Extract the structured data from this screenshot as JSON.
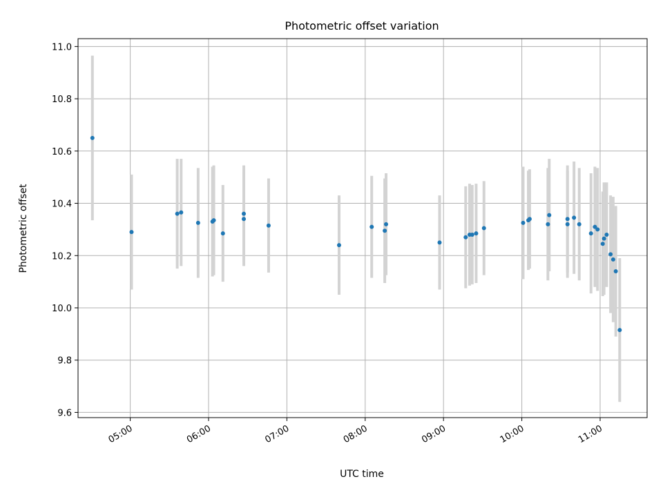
{
  "chart_data": {
    "type": "scatter",
    "title": "Photometric offset variation",
    "xlabel": "UTC time",
    "ylabel": "Photometric offset",
    "x_tick_labels": [
      "05:00",
      "06:00",
      "07:00",
      "08:00",
      "09:00",
      "10:00",
      "11:00"
    ],
    "y_ticks": [
      9.6,
      9.8,
      10.0,
      10.2,
      10.4,
      10.6,
      10.8,
      11.0
    ],
    "xlim": [
      "04:20",
      "11:36"
    ],
    "ylim": [
      9.58,
      11.03
    ],
    "grid": true,
    "colors": {
      "points": "#1f77b4",
      "error_bars": "#d3d3d3",
      "grid": "#b0b0b0"
    },
    "points": [
      {
        "x": "04:31",
        "y": 10.65,
        "err": 0.315
      },
      {
        "x": "05:01",
        "y": 10.29,
        "err": 0.22
      },
      {
        "x": "05:36",
        "y": 10.36,
        "err": 0.21
      },
      {
        "x": "05:39",
        "y": 10.365,
        "err": 0.205
      },
      {
        "x": "05:52",
        "y": 10.325,
        "err": 0.21
      },
      {
        "x": "06:03",
        "y": 10.33,
        "err": 0.21
      },
      {
        "x": "06:04",
        "y": 10.335,
        "err": 0.21
      },
      {
        "x": "06:11",
        "y": 10.285,
        "err": 0.185
      },
      {
        "x": "06:27",
        "y": 10.34,
        "err": 0.18
      },
      {
        "x": "06:27",
        "y": 10.36,
        "err": 0.185
      },
      {
        "x": "06:46",
        "y": 10.315,
        "err": 0.18
      },
      {
        "x": "07:40",
        "y": 10.24,
        "err": 0.19
      },
      {
        "x": "08:05",
        "y": 10.31,
        "err": 0.195
      },
      {
        "x": "08:15",
        "y": 10.295,
        "err": 0.2
      },
      {
        "x": "08:16",
        "y": 10.32,
        "err": 0.195
      },
      {
        "x": "08:57",
        "y": 10.25,
        "err": 0.18
      },
      {
        "x": "09:17",
        "y": 10.27,
        "err": 0.195
      },
      {
        "x": "09:20",
        "y": 10.28,
        "err": 0.195
      },
      {
        "x": "09:22",
        "y": 10.28,
        "err": 0.19
      },
      {
        "x": "09:25",
        "y": 10.285,
        "err": 0.19
      },
      {
        "x": "09:31",
        "y": 10.305,
        "err": 0.18
      },
      {
        "x": "10:01",
        "y": 10.325,
        "err": 0.215
      },
      {
        "x": "10:05",
        "y": 10.335,
        "err": 0.19
      },
      {
        "x": "10:06",
        "y": 10.34,
        "err": 0.19
      },
      {
        "x": "10:20",
        "y": 10.32,
        "err": 0.215
      },
      {
        "x": "10:21",
        "y": 10.355,
        "err": 0.215
      },
      {
        "x": "10:35",
        "y": 10.32,
        "err": 0.205
      },
      {
        "x": "10:35",
        "y": 10.34,
        "err": 0.205
      },
      {
        "x": "10:40",
        "y": 10.345,
        "err": 0.215
      },
      {
        "x": "10:44",
        "y": 10.32,
        "err": 0.215
      },
      {
        "x": "10:53",
        "y": 10.285,
        "err": 0.23
      },
      {
        "x": "10:56",
        "y": 10.31,
        "err": 0.23
      },
      {
        "x": "10:58",
        "y": 10.3,
        "err": 0.235
      },
      {
        "x": "11:02",
        "y": 10.245,
        "err": 0.2
      },
      {
        "x": "11:03",
        "y": 10.265,
        "err": 0.215
      },
      {
        "x": "11:05",
        "y": 10.28,
        "err": 0.2
      },
      {
        "x": "11:08",
        "y": 10.205,
        "err": 0.225
      },
      {
        "x": "11:10",
        "y": 10.185,
        "err": 0.24
      },
      {
        "x": "11:12",
        "y": 10.14,
        "err": 0.25
      },
      {
        "x": "11:15",
        "y": 9.915,
        "err": 0.275
      }
    ]
  }
}
